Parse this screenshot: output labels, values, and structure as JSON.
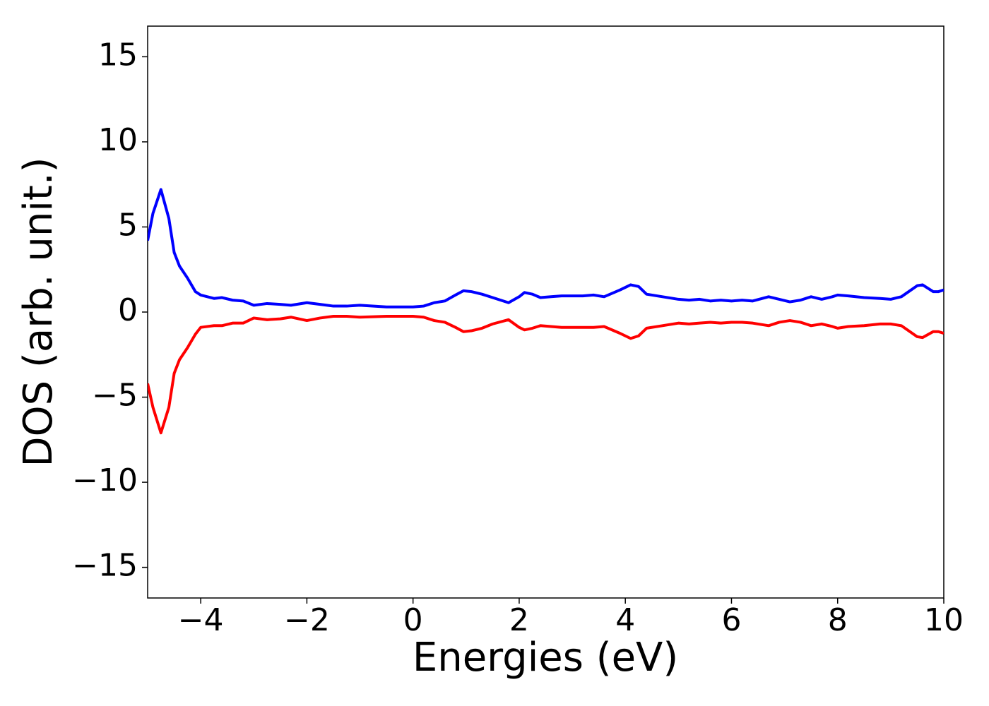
{
  "chart_data": {
    "type": "line",
    "x_label": "Energies (eV)",
    "y_label": "DOS (arb. unit.)",
    "xlim": [
      -5,
      10
    ],
    "ylim": [
      -16.8,
      16.8
    ],
    "xticks": [
      {
        "value": -4,
        "label": "−4"
      },
      {
        "value": -2,
        "label": "−2"
      },
      0,
      2,
      4,
      6,
      8,
      10
    ],
    "yticks": [
      {
        "value": -15,
        "label": "−15"
      },
      {
        "value": -10,
        "label": "−10"
      },
      {
        "value": -5,
        "label": "−5"
      },
      0,
      5,
      10,
      15
    ],
    "grid": false,
    "x": [
      -5,
      -4.9,
      -4.75,
      -4.6,
      -4.5,
      -4.4,
      -4.25,
      -4.1,
      -4,
      -3.75,
      -3.6,
      -3.4,
      -3.2,
      -3,
      -2.75,
      -2.5,
      -2.3,
      -2,
      -1.75,
      -1.5,
      -1.25,
      -1,
      -0.5,
      0,
      0.2,
      0.4,
      0.6,
      0.8,
      0.95,
      1.1,
      1.3,
      1.5,
      1.8,
      2,
      2.1,
      2.25,
      2.4,
      2.6,
      2.8,
      3,
      3.2,
      3.4,
      3.6,
      3.9,
      4.1,
      4.25,
      4.4,
      4.7,
      5,
      5.2,
      5.4,
      5.6,
      5.8,
      6,
      6.2,
      6.4,
      6.7,
      6.9,
      7.1,
      7.3,
      7.5,
      7.7,
      7.9,
      8,
      8.2,
      8.5,
      8.8,
      9,
      9.2,
      9.5,
      9.6,
      9.8,
      9.9,
      10
    ],
    "series": [
      {
        "color": "#0000ff",
        "values": [
          4.2,
          5.8,
          7.2,
          5.5,
          3.5,
          2.7,
          2.0,
          1.2,
          1.0,
          0.8,
          0.85,
          0.7,
          0.65,
          0.4,
          0.5,
          0.45,
          0.4,
          0.55,
          0.45,
          0.35,
          0.35,
          0.4,
          0.3,
          0.3,
          0.35,
          0.55,
          0.65,
          1.0,
          1.25,
          1.2,
          1.05,
          0.85,
          0.55,
          0.9,
          1.15,
          1.05,
          0.85,
          0.9,
          0.95,
          0.95,
          0.95,
          1.0,
          0.9,
          1.3,
          1.6,
          1.5,
          1.05,
          0.9,
          0.75,
          0.7,
          0.75,
          0.65,
          0.7,
          0.65,
          0.7,
          0.65,
          0.9,
          0.75,
          0.6,
          0.7,
          0.9,
          0.75,
          0.9,
          1.0,
          0.95,
          0.85,
          0.8,
          0.75,
          0.9,
          1.55,
          1.6,
          1.2,
          1.2,
          1.3
        ]
      },
      {
        "color": "#ff0000",
        "values": [
          -4.2,
          -5.6,
          -7.1,
          -5.6,
          -3.6,
          -2.8,
          -2.1,
          -1.3,
          -0.9,
          -0.8,
          -0.8,
          -0.65,
          -0.65,
          -0.35,
          -0.45,
          -0.4,
          -0.3,
          -0.5,
          -0.35,
          -0.25,
          -0.25,
          -0.3,
          -0.25,
          -0.25,
          -0.3,
          -0.5,
          -0.6,
          -0.9,
          -1.15,
          -1.1,
          -0.95,
          -0.7,
          -0.45,
          -0.9,
          -1.05,
          -0.95,
          -0.8,
          -0.85,
          -0.9,
          -0.9,
          -0.9,
          -0.9,
          -0.85,
          -1.25,
          -1.55,
          -1.4,
          -0.95,
          -0.8,
          -0.65,
          -0.7,
          -0.65,
          -0.6,
          -0.65,
          -0.6,
          -0.6,
          -0.65,
          -0.8,
          -0.6,
          -0.5,
          -0.6,
          -0.8,
          -0.7,
          -0.85,
          -0.95,
          -0.85,
          -0.8,
          -0.7,
          -0.7,
          -0.8,
          -1.45,
          -1.5,
          -1.15,
          -1.15,
          -1.25
        ]
      }
    ]
  }
}
